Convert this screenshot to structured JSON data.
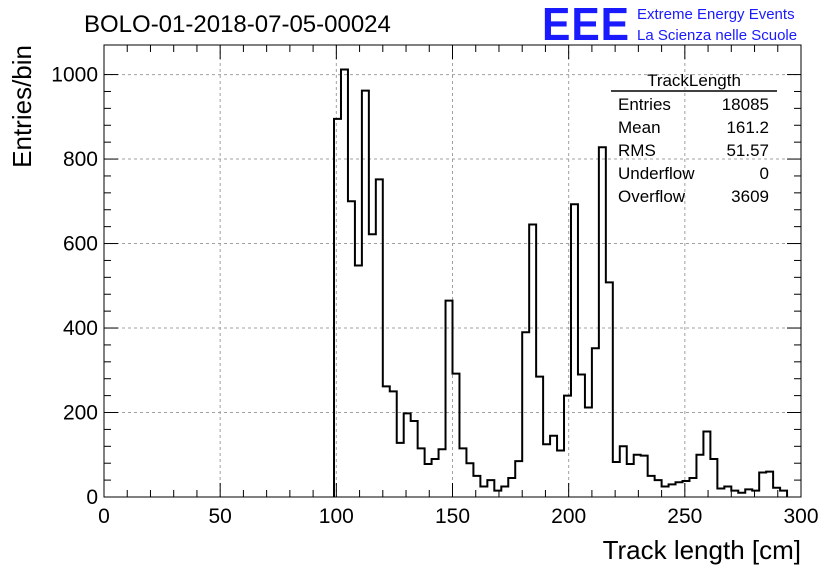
{
  "header": {
    "run_title": "BOLO-01-2018-07-05-00024",
    "logo_text": "EEE",
    "org_line1": "Extreme Energy Events",
    "org_line2": "La Scienza nelle Scuole",
    "brand_color": "#1a1aff"
  },
  "stats_box": {
    "title": "TrackLength",
    "rows": [
      {
        "label": "Entries",
        "value": "18085"
      },
      {
        "label": "Mean",
        "value": "161.2"
      },
      {
        "label": "RMS",
        "value": "51.57"
      },
      {
        "label": "Underflow",
        "value": "0"
      },
      {
        "label": "Overflow",
        "value": "3609"
      }
    ]
  },
  "chart_data": {
    "type": "histogram",
    "title": "BOLO-01-2018-07-05-00024",
    "xlabel": "Track length [cm]",
    "ylabel": "Entries/bin",
    "xlim": [
      0,
      300
    ],
    "ylim": [
      0,
      1070
    ],
    "grid": true,
    "bin_width": 3,
    "xticks": [
      0,
      50,
      100,
      150,
      200,
      250,
      300
    ],
    "yticks": [
      0,
      200,
      400,
      600,
      800,
      1000
    ],
    "xtick_labels": [
      "0",
      "50",
      "100",
      "150",
      "200",
      "250",
      "300"
    ],
    "ytick_labels": [
      "0",
      "200",
      "400",
      "600",
      "800",
      "1000"
    ],
    "bin_edges_start": 99,
    "counts": [
      895,
      1012,
      700,
      548,
      962,
      622,
      752,
      262,
      250,
      128,
      198,
      180,
      115,
      78,
      90,
      113,
      465,
      292,
      115,
      80,
      50,
      25,
      40,
      15,
      25,
      45,
      85,
      390,
      645,
      285,
      125,
      145,
      110,
      240,
      693,
      290,
      212,
      352,
      828,
      508,
      83,
      120,
      78,
      100,
      98,
      50,
      40,
      25,
      30,
      35,
      38,
      45,
      100,
      155,
      90,
      20,
      25,
      15,
      10,
      18,
      15,
      58,
      60,
      22,
      15
    ]
  }
}
